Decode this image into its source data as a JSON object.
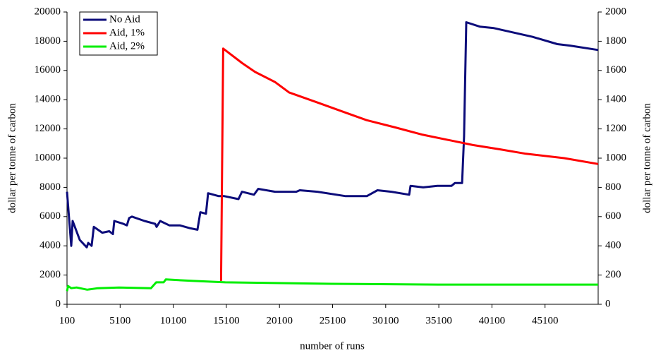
{
  "chart_data": {
    "type": "line",
    "xlabel": "number of runs",
    "ylabel": "dollar per tonne of carbon",
    "y2label": "dollar per tonne of carbon",
    "xlim": [
      100,
      50100
    ],
    "xticks": [
      100,
      5100,
      10100,
      15100,
      20100,
      25100,
      30100,
      35100,
      40100,
      45100
    ],
    "ylim": [
      0,
      20000
    ],
    "yticks": [
      0,
      2000,
      4000,
      6000,
      8000,
      10000,
      12000,
      14000,
      16000,
      18000,
      20000
    ],
    "y2lim": [
      0,
      2000
    ],
    "y2ticks": [
      0,
      200,
      400,
      600,
      800,
      1000,
      1200,
      1400,
      1600,
      1800,
      2000
    ],
    "legend": "upper left",
    "series": [
      {
        "name": "No Aid",
        "color": "#0c0c7a",
        "x": [
          100,
          500,
          630,
          1300,
          1960,
          2100,
          2420,
          2620,
          3420,
          4080,
          4420,
          4550,
          5410,
          5740,
          5940,
          6210,
          7400,
          8400,
          8530,
          8870,
          9730,
          10720,
          11720,
          12380,
          12650,
          13180,
          13380,
          14380,
          14910,
          16240,
          16570,
          17700,
          18100,
          19690,
          21680,
          22010,
          23670,
          26330,
          28320,
          29320,
          30640,
          32310,
          32440,
          33630,
          34960,
          36290,
          36620,
          37290,
          37480,
          37680,
          38950,
          40280,
          43930,
          46260,
          47450,
          50100
        ],
        "values": [
          7700,
          4000,
          5700,
          4400,
          3900,
          4200,
          4000,
          5300,
          4900,
          5000,
          4800,
          5700,
          5500,
          5400,
          5900,
          6000,
          5700,
          5500,
          5300,
          5700,
          5400,
          5400,
          5200,
          5100,
          6300,
          6200,
          7600,
          7400,
          7400,
          7200,
          7700,
          7500,
          7900,
          7700,
          7700,
          7800,
          7700,
          7400,
          7400,
          7800,
          7700,
          7500,
          8100,
          8000,
          8100,
          8100,
          8300,
          8300,
          11500,
          19300,
          19000,
          18900,
          18300,
          17800,
          17700,
          17400
        ]
      },
      {
        "name": "Aid, 1%",
        "color": "#ff0000",
        "axis": "y2",
        "x": [
          14600,
          14800,
          16600,
          17800,
          19700,
          21000,
          23700,
          26000,
          28300,
          31000,
          33600,
          36300,
          38300,
          40900,
          43300,
          46900,
          50100
        ],
        "values": [
          160,
          1750,
          1650,
          1590,
          1520,
          1450,
          1380,
          1320,
          1260,
          1210,
          1160,
          1120,
          1090,
          1060,
          1030,
          1000,
          960
        ]
      },
      {
        "name": "Aid, 2%",
        "color": "#00ee00",
        "axis": "y2",
        "x": [
          100,
          200,
          500,
          1000,
          2000,
          3000,
          5000,
          8000,
          8500,
          9200,
          9400,
          12000,
          15000,
          25000,
          35000,
          50100
        ],
        "values": [
          90,
          125,
          110,
          115,
          100,
          110,
          115,
          110,
          150,
          150,
          170,
          160,
          150,
          140,
          135,
          135
        ]
      }
    ]
  }
}
